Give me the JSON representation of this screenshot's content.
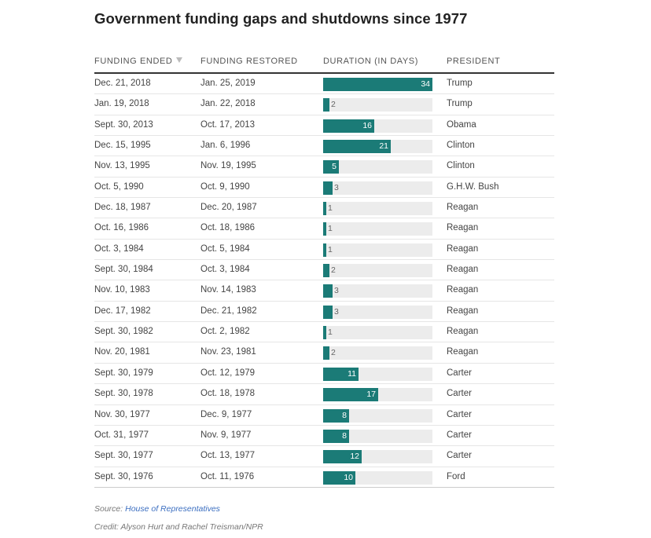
{
  "title": "Government funding gaps and shutdowns since 1977",
  "headers": {
    "funding_ended": "FUNDING ENDED",
    "funding_restored": "FUNDING RESTORED",
    "duration": "DURATION (IN DAYS)",
    "president": "PRESIDENT"
  },
  "colors": {
    "bar": "#1b7b77",
    "track": "#ececec",
    "link": "#3b6ec0"
  },
  "chart_data": {
    "type": "table",
    "title": "Government funding gaps and shutdowns since 1977",
    "columns": [
      "FUNDING ENDED",
      "FUNDING RESTORED",
      "DURATION (IN DAYS)",
      "PRESIDENT"
    ],
    "xlim": [
      0,
      34
    ],
    "rows": [
      {
        "ended": "Dec. 21, 2018",
        "restored": "Jan. 25, 2019",
        "days": 34,
        "president": "Trump"
      },
      {
        "ended": "Jan. 19, 2018",
        "restored": "Jan. 22, 2018",
        "days": 2,
        "president": "Trump"
      },
      {
        "ended": "Sept. 30, 2013",
        "restored": "Oct. 17, 2013",
        "days": 16,
        "president": "Obama"
      },
      {
        "ended": "Dec. 15, 1995",
        "restored": "Jan. 6, 1996",
        "days": 21,
        "president": "Clinton"
      },
      {
        "ended": "Nov. 13, 1995",
        "restored": "Nov. 19, 1995",
        "days": 5,
        "president": "Clinton"
      },
      {
        "ended": "Oct. 5, 1990",
        "restored": "Oct. 9, 1990",
        "days": 3,
        "president": "G.H.W. Bush"
      },
      {
        "ended": "Dec. 18, 1987",
        "restored": "Dec. 20, 1987",
        "days": 1,
        "president": "Reagan"
      },
      {
        "ended": "Oct. 16, 1986",
        "restored": "Oct. 18, 1986",
        "days": 1,
        "president": "Reagan"
      },
      {
        "ended": "Oct. 3, 1984",
        "restored": "Oct. 5, 1984",
        "days": 1,
        "president": "Reagan"
      },
      {
        "ended": "Sept. 30, 1984",
        "restored": "Oct. 3, 1984",
        "days": 2,
        "president": "Reagan"
      },
      {
        "ended": "Nov. 10, 1983",
        "restored": "Nov. 14, 1983",
        "days": 3,
        "president": "Reagan"
      },
      {
        "ended": "Dec. 17, 1982",
        "restored": "Dec. 21, 1982",
        "days": 3,
        "president": "Reagan"
      },
      {
        "ended": "Sept. 30, 1982",
        "restored": "Oct. 2, 1982",
        "days": 1,
        "president": "Reagan"
      },
      {
        "ended": "Nov. 20, 1981",
        "restored": "Nov. 23, 1981",
        "days": 2,
        "president": "Reagan"
      },
      {
        "ended": "Sept. 30, 1979",
        "restored": "Oct. 12, 1979",
        "days": 11,
        "president": "Carter"
      },
      {
        "ended": "Sept. 30, 1978",
        "restored": "Oct. 18, 1978",
        "days": 17,
        "president": "Carter"
      },
      {
        "ended": "Nov. 30, 1977",
        "restored": "Dec. 9, 1977",
        "days": 8,
        "president": "Carter"
      },
      {
        "ended": "Oct. 31, 1977",
        "restored": "Nov. 9, 1977",
        "days": 8,
        "president": "Carter"
      },
      {
        "ended": "Sept. 30, 1977",
        "restored": "Oct. 13, 1977",
        "days": 12,
        "president": "Carter"
      },
      {
        "ended": "Sept. 30, 1976",
        "restored": "Oct. 11, 1976",
        "days": 10,
        "president": "Ford"
      }
    ]
  },
  "footer": {
    "source_label": "Source: ",
    "source_link": "House of Representatives",
    "credit": "Credit: Alyson Hurt and Rachel Treisman/NPR"
  }
}
